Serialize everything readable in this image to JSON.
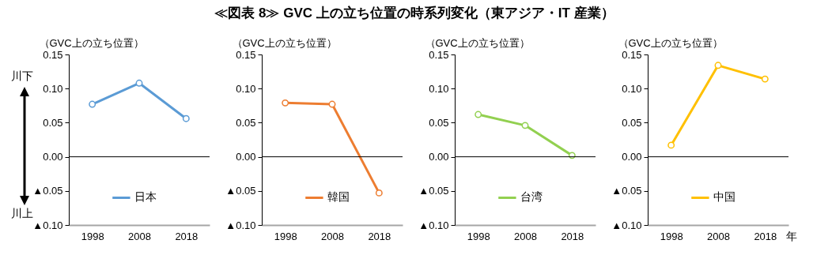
{
  "chart_data": [
    {
      "type": "line",
      "title": "≪図表 8≫ GVC 上の立ち位置の時系列変化（東アジア・IT 産業）",
      "ylabel": "（GVC上の立ち位置）",
      "annotations": [
        "川下",
        "川上"
      ],
      "categories": [
        "1998",
        "2008",
        "2018"
      ],
      "series": [
        {
          "name": "日本",
          "color": "#5b9bd5",
          "values": [
            0.077,
            0.108,
            0.056
          ]
        }
      ],
      "ylim": [
        -0.1,
        0.15
      ],
      "yticks": [
        {
          "value": -0.1,
          "label": "▲0.10"
        },
        {
          "value": -0.05,
          "label": "▲0.05"
        },
        {
          "value": 0,
          "label": "0.00"
        },
        {
          "value": 0.05,
          "label": "0.05"
        },
        {
          "value": 0.1,
          "label": "0.10"
        },
        {
          "value": 0.15,
          "label": "0.15"
        }
      ],
      "ref_lines": [
        {
          "axis": "y",
          "value": 0
        }
      ],
      "legend": "bottom",
      "marker": "circle"
    },
    {
      "type": "line",
      "ylabel": "（GVC上の立ち位置）",
      "categories": [
        "1998",
        "2008",
        "2018"
      ],
      "series": [
        {
          "name": "韓国",
          "color": "#ed7d31",
          "values": [
            0.079,
            0.077,
            -0.053
          ]
        }
      ],
      "ylim": [
        -0.1,
        0.15
      ],
      "yticks": [
        {
          "value": -0.1,
          "label": "▲0.10"
        },
        {
          "value": -0.05,
          "label": "▲0.05"
        },
        {
          "value": 0,
          "label": "0.00"
        },
        {
          "value": 0.05,
          "label": "0.05"
        },
        {
          "value": 0.1,
          "label": "0.10"
        },
        {
          "value": 0.15,
          "label": "0.15"
        }
      ],
      "ref_lines": [
        {
          "axis": "y",
          "value": 0
        }
      ],
      "legend": "bottom",
      "marker": "circle"
    },
    {
      "type": "line",
      "ylabel": "（GVC上の立ち位置）",
      "categories": [
        "1998",
        "2008",
        "2018"
      ],
      "series": [
        {
          "name": "台湾",
          "color": "#92d050",
          "values": [
            0.062,
            0.046,
            0.002
          ]
        }
      ],
      "ylim": [
        -0.1,
        0.15
      ],
      "yticks": [
        {
          "value": -0.1,
          "label": "▲0.10"
        },
        {
          "value": -0.05,
          "label": "▲0.05"
        },
        {
          "value": 0,
          "label": "0.00"
        },
        {
          "value": 0.05,
          "label": "0.05"
        },
        {
          "value": 0.1,
          "label": "0.10"
        },
        {
          "value": 0.15,
          "label": "0.15"
        }
      ],
      "ref_lines": [
        {
          "axis": "y",
          "value": 0
        }
      ],
      "legend": "bottom",
      "marker": "circle"
    },
    {
      "type": "line",
      "ylabel": "（GVC上の立ち位置）",
      "xlabel": "年",
      "categories": [
        "1998",
        "2008",
        "2018"
      ],
      "series": [
        {
          "name": "中国",
          "color": "#ffc000",
          "values": [
            0.017,
            0.134,
            0.114
          ]
        }
      ],
      "ylim": [
        -0.1,
        0.15
      ],
      "yticks": [
        {
          "value": -0.1,
          "label": "▲0.10"
        },
        {
          "value": -0.05,
          "label": "▲0.05"
        },
        {
          "value": 0,
          "label": "0.00"
        },
        {
          "value": 0.05,
          "label": "0.05"
        },
        {
          "value": 0.1,
          "label": "0.10"
        },
        {
          "value": 0.15,
          "label": "0.15"
        }
      ],
      "ref_lines": [
        {
          "axis": "y",
          "value": 0
        }
      ],
      "legend": "bottom",
      "marker": "circle"
    }
  ]
}
